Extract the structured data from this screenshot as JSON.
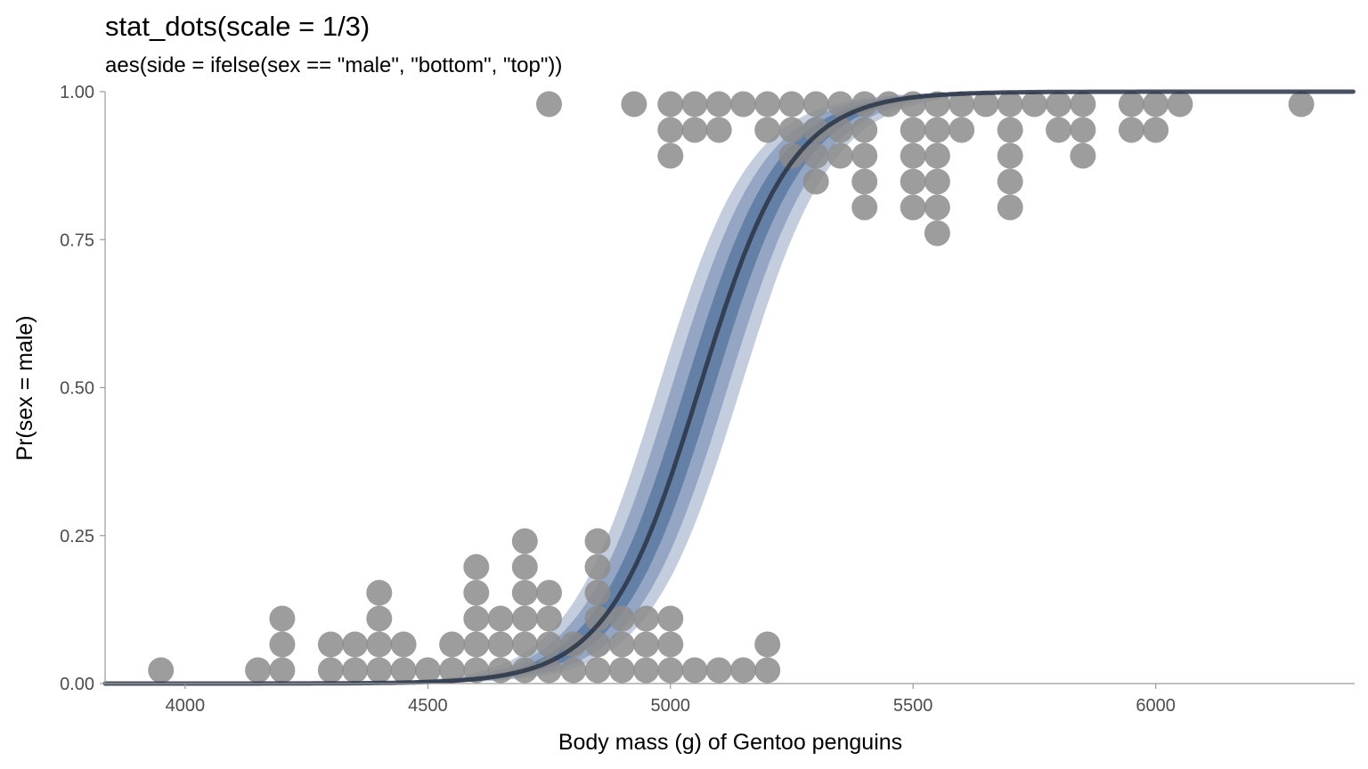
{
  "chart_data": {
    "type": "scatter",
    "title": "stat_dots(scale = 1/3)",
    "subtitle": "aes(side = ifelse(sex == \"male\", \"bottom\", \"top\"))",
    "xlabel": "Body mass (g) of Gentoo penguins",
    "ylabel": "Pr(sex = male)",
    "xlim": [
      3835,
      6410
    ],
    "ylim": [
      0,
      1
    ],
    "xticks": [
      4000,
      4500,
      5000,
      5500,
      6000
    ],
    "xtick_labels": [
      "4000",
      "4500",
      "5000",
      "5500",
      "6000"
    ],
    "yticks": [
      0,
      0.25,
      0.5,
      0.75,
      1
    ],
    "ytick_labels": [
      "0.00",
      "0.25",
      "0.50",
      "0.75",
      "1.00"
    ],
    "grid": false,
    "logistic_fit": {
      "midpoint": 5060,
      "scale": 95
    },
    "intervals": [
      {
        "level": 0.95,
        "half_width": 85,
        "color": "#c3cddd"
      },
      {
        "level": 0.8,
        "half_width": 58,
        "color": "#94a6c3"
      },
      {
        "level": 0.5,
        "half_width": 30,
        "color": "#6580a6"
      }
    ],
    "line_color": "#2a3445",
    "dot_color": "#8c8c8c",
    "dot_opacity": 0.85,
    "dot_columns": [
      {
        "x": 3950,
        "count": 1,
        "side": "bottom"
      },
      {
        "x": 4150,
        "count": 1,
        "side": "bottom"
      },
      {
        "x": 4200,
        "count": 3,
        "side": "bottom"
      },
      {
        "x": 4300,
        "count": 2,
        "side": "bottom"
      },
      {
        "x": 4350,
        "count": 2,
        "side": "bottom"
      },
      {
        "x": 4400,
        "count": 4,
        "side": "bottom"
      },
      {
        "x": 4450,
        "count": 2,
        "side": "bottom"
      },
      {
        "x": 4500,
        "count": 1,
        "side": "bottom"
      },
      {
        "x": 4550,
        "count": 2,
        "side": "bottom"
      },
      {
        "x": 4600,
        "count": 5,
        "side": "bottom"
      },
      {
        "x": 4650,
        "count": 3,
        "side": "bottom"
      },
      {
        "x": 4700,
        "count": 6,
        "side": "bottom"
      },
      {
        "x": 4750,
        "count": 4,
        "side": "bottom"
      },
      {
        "x": 4800,
        "count": 2,
        "side": "bottom"
      },
      {
        "x": 4850,
        "count": 6,
        "side": "bottom"
      },
      {
        "x": 4900,
        "count": 3,
        "side": "bottom"
      },
      {
        "x": 4950,
        "count": 3,
        "side": "bottom"
      },
      {
        "x": 5000,
        "count": 3,
        "side": "bottom"
      },
      {
        "x": 5050,
        "count": 1,
        "side": "bottom"
      },
      {
        "x": 5100,
        "count": 1,
        "side": "bottom"
      },
      {
        "x": 5150,
        "count": 1,
        "side": "bottom"
      },
      {
        "x": 5200,
        "count": 2,
        "side": "bottom"
      },
      {
        "x": 4750,
        "count": 1,
        "side": "top"
      },
      {
        "x": 4925,
        "count": 1,
        "side": "top"
      },
      {
        "x": 5000,
        "count": 3,
        "side": "top"
      },
      {
        "x": 5050,
        "count": 2,
        "side": "top"
      },
      {
        "x": 5100,
        "count": 2,
        "side": "top"
      },
      {
        "x": 5150,
        "count": 1,
        "side": "top"
      },
      {
        "x": 5200,
        "count": 2,
        "side": "top"
      },
      {
        "x": 5250,
        "count": 3,
        "side": "top"
      },
      {
        "x": 5300,
        "count": 4,
        "side": "top"
      },
      {
        "x": 5350,
        "count": 3,
        "side": "top"
      },
      {
        "x": 5400,
        "count": 5,
        "side": "top"
      },
      {
        "x": 5450,
        "count": 1,
        "side": "top"
      },
      {
        "x": 5500,
        "count": 5,
        "side": "top"
      },
      {
        "x": 5550,
        "count": 6,
        "side": "top"
      },
      {
        "x": 5600,
        "count": 2,
        "side": "top"
      },
      {
        "x": 5650,
        "count": 1,
        "side": "top"
      },
      {
        "x": 5700,
        "count": 5,
        "side": "top"
      },
      {
        "x": 5750,
        "count": 1,
        "side": "top"
      },
      {
        "x": 5800,
        "count": 2,
        "side": "top"
      },
      {
        "x": 5850,
        "count": 3,
        "side": "top"
      },
      {
        "x": 5950,
        "count": 2,
        "side": "top"
      },
      {
        "x": 6000,
        "count": 2,
        "side": "top"
      },
      {
        "x": 6050,
        "count": 1,
        "side": "top"
      },
      {
        "x": 6300,
        "count": 1,
        "side": "top"
      }
    ]
  }
}
